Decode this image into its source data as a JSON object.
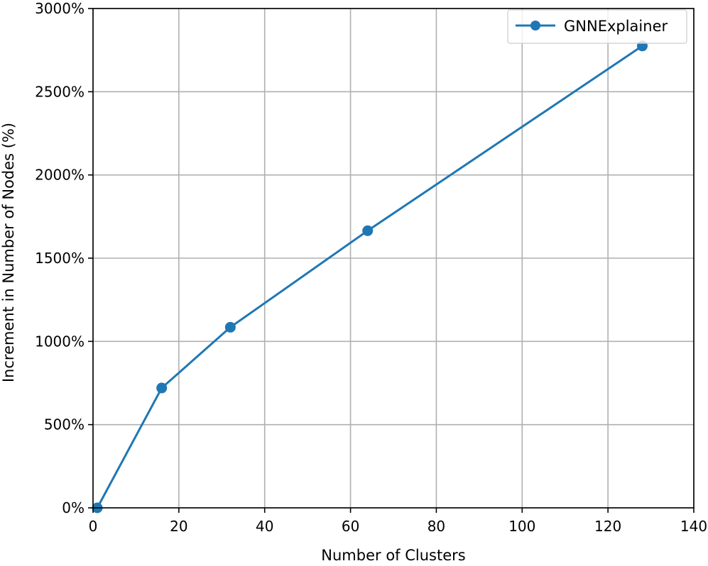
{
  "chart_data": {
    "type": "line",
    "title": "",
    "xlabel": "Number of Clusters",
    "ylabel": "Increment in Number of Nodes (%)",
    "xlim": [
      0,
      140
    ],
    "ylim": [
      0,
      3000
    ],
    "xticks": [
      0,
      20,
      40,
      60,
      80,
      100,
      120,
      140
    ],
    "yticks": [
      0,
      500,
      1000,
      1500,
      2000,
      2500,
      3000
    ],
    "ytick_suffix": "%",
    "grid": true,
    "legend_position": "top-right",
    "series": [
      {
        "name": "GNNExplainer",
        "color": "#1f77b4",
        "marker": "circle",
        "x": [
          1,
          16,
          32,
          64,
          128
        ],
        "y": [
          0,
          720,
          1085,
          1665,
          2775
        ]
      }
    ]
  }
}
